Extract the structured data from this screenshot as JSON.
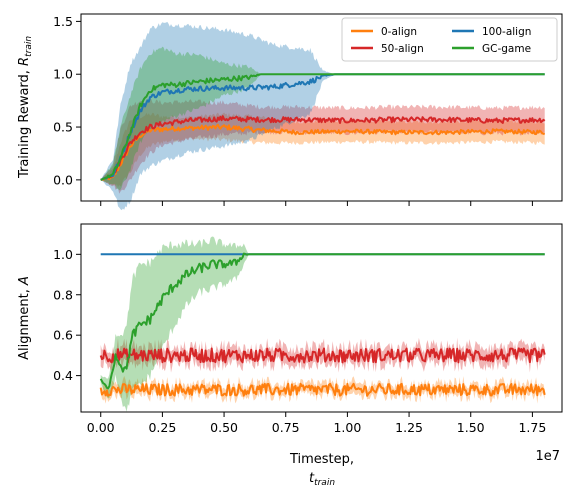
{
  "chart_data": [
    {
      "type": "line",
      "panel": "top",
      "ylabel_main": "Training Reward, ",
      "ylabel_math": "R",
      "ylabel_sub": "train",
      "xlim": [
        -0.08,
        1.87
      ],
      "ylim": [
        -0.2,
        1.57
      ],
      "yticks": [
        "0.0",
        "0.5",
        "1.0",
        "1.5"
      ],
      "ytick_values": [
        0.0,
        0.5,
        1.0,
        1.5
      ],
      "grid": false,
      "legend_position": "top-right",
      "legend": [
        {
          "label": "0-align",
          "color": "#ff7f0e"
        },
        {
          "label": "100-align",
          "color": "#1f77b4"
        },
        {
          "label": "50-align",
          "color": "#d62728"
        },
        {
          "label": "GC-game",
          "color": "#2ca02c"
        }
      ],
      "series": [
        {
          "name": "0-align",
          "color": "#ff7f0e",
          "x": [
            0.0,
            0.05,
            0.08,
            0.12,
            0.16,
            0.2,
            0.25,
            0.35,
            0.5,
            0.65,
            0.8,
            1.0,
            1.2,
            1.4,
            1.6,
            1.8
          ],
          "y": [
            0.0,
            0.02,
            0.15,
            0.32,
            0.42,
            0.47,
            0.48,
            0.49,
            0.5,
            0.47,
            0.45,
            0.46,
            0.45,
            0.45,
            0.46,
            0.45
          ],
          "band": [
            0.0,
            0.08,
            0.2,
            0.25,
            0.18,
            0.15,
            0.12,
            0.1,
            0.12,
            0.12,
            0.1,
            0.1,
            0.1,
            0.1,
            0.1,
            0.1
          ]
        },
        {
          "name": "50-align",
          "color": "#d62728",
          "x": [
            0.0,
            0.05,
            0.08,
            0.12,
            0.16,
            0.2,
            0.25,
            0.35,
            0.5,
            0.65,
            0.8,
            1.0,
            1.2,
            1.4,
            1.6,
            1.8
          ],
          "y": [
            0.0,
            0.05,
            0.18,
            0.35,
            0.45,
            0.5,
            0.53,
            0.56,
            0.58,
            0.57,
            0.57,
            0.56,
            0.57,
            0.57,
            0.56,
            0.57
          ],
          "band": [
            0.0,
            0.1,
            0.3,
            0.35,
            0.3,
            0.25,
            0.2,
            0.18,
            0.15,
            0.12,
            0.12,
            0.12,
            0.12,
            0.12,
            0.12,
            0.12
          ]
        },
        {
          "name": "100-align",
          "color": "#1f77b4",
          "x": [
            0.0,
            0.05,
            0.08,
            0.12,
            0.16,
            0.2,
            0.25,
            0.35,
            0.5,
            0.6,
            0.7,
            0.85,
            0.9,
            0.95,
            1.2,
            1.5,
            1.8
          ],
          "y": [
            0.0,
            0.05,
            0.2,
            0.45,
            0.65,
            0.78,
            0.83,
            0.86,
            0.87,
            0.87,
            0.88,
            0.93,
            0.98,
            1.0,
            1.0,
            1.0,
            1.0
          ],
          "band": [
            0.0,
            0.15,
            0.5,
            0.65,
            0.6,
            0.65,
            0.65,
            0.6,
            0.55,
            0.5,
            0.4,
            0.3,
            0.05,
            0.0,
            0.0,
            0.0,
            0.0
          ]
        },
        {
          "name": "GC-game",
          "color": "#2ca02c",
          "x": [
            0.0,
            0.05,
            0.08,
            0.12,
            0.16,
            0.2,
            0.25,
            0.3,
            0.4,
            0.5,
            0.6,
            0.65,
            0.9,
            1.2,
            1.5,
            1.8
          ],
          "y": [
            0.0,
            0.05,
            0.2,
            0.45,
            0.7,
            0.85,
            0.9,
            0.9,
            0.93,
            0.95,
            0.97,
            1.0,
            1.0,
            1.0,
            1.0,
            1.0
          ],
          "band": [
            0.0,
            0.1,
            0.3,
            0.35,
            0.35,
            0.35,
            0.35,
            0.3,
            0.25,
            0.15,
            0.1,
            0.0,
            0.0,
            0.0,
            0.0,
            0.0
          ]
        }
      ]
    },
    {
      "type": "line",
      "panel": "bottom",
      "ylabel_main": "Alignment, ",
      "ylabel_math": "A",
      "xlabel_main": "Timestep,",
      "xlabel_math": "t",
      "xlabel_sub": "train",
      "x_offset_label": "1e7",
      "xlim": [
        -0.08,
        1.87
      ],
      "ylim": [
        0.22,
        1.15
      ],
      "xticks": [
        "0.00",
        "0.25",
        "0.50",
        "0.75",
        "1.00",
        "1.25",
        "1.50",
        "1.75"
      ],
      "xtick_values": [
        0.0,
        0.25,
        0.5,
        0.75,
        1.0,
        1.25,
        1.5,
        1.75
      ],
      "yticks": [
        "0.4",
        "0.6",
        "0.8",
        "1.0"
      ],
      "ytick_values": [
        0.4,
        0.6,
        0.8,
        1.0
      ],
      "grid": false,
      "series": [
        {
          "name": "0-align",
          "color": "#ff7f0e",
          "x_start": 0.0,
          "x_end": 1.8,
          "y_mean": 0.33,
          "noise": 0.03,
          "band": 0.03
        },
        {
          "name": "50-align",
          "color": "#d62728",
          "x_start": 0.0,
          "x_end": 1.8,
          "y_mean": 0.5,
          "noise": 0.035,
          "band": 0.04
        },
        {
          "name": "100-align",
          "color": "#1f77b4",
          "x": [
            0.0,
            1.8
          ],
          "y": [
            1.0,
            1.0
          ]
        },
        {
          "name": "GC-game",
          "color": "#2ca02c",
          "x": [
            0.0,
            0.03,
            0.06,
            0.1,
            0.13,
            0.16,
            0.2,
            0.25,
            0.3,
            0.35,
            0.4,
            0.45,
            0.5,
            0.55,
            0.58,
            0.6,
            1.8
          ],
          "y": [
            0.38,
            0.33,
            0.5,
            0.42,
            0.6,
            0.65,
            0.68,
            0.78,
            0.85,
            0.9,
            0.93,
            0.95,
            0.95,
            0.96,
            1.0,
            1.0,
            1.0
          ],
          "band": [
            0.02,
            0.05,
            0.1,
            0.2,
            0.28,
            0.3,
            0.28,
            0.25,
            0.2,
            0.15,
            0.12,
            0.12,
            0.1,
            0.08,
            0.05,
            0.0,
            0.0
          ]
        }
      ]
    }
  ]
}
